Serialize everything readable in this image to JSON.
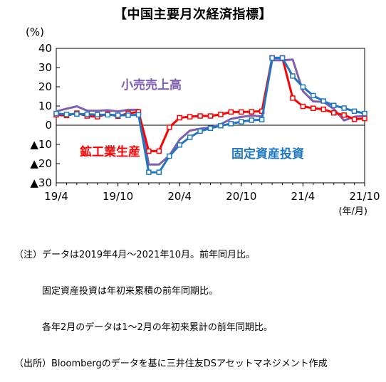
{
  "chart_data": {
    "type": "line",
    "title": "【中国主要月次経済指標】",
    "y_unit": "(%)",
    "x_unit": "(年/月)",
    "ylim": [
      -30,
      40
    ],
    "y_ticks": [
      {
        "value": 40,
        "label": "40"
      },
      {
        "value": 30,
        "label": "30"
      },
      {
        "value": 20,
        "label": "20"
      },
      {
        "value": 10,
        "label": "10"
      },
      {
        "value": 0,
        "label": "0"
      },
      {
        "value": -10,
        "label": "▲10"
      },
      {
        "value": -20,
        "label": "▲20"
      },
      {
        "value": -30,
        "label": "▲30"
      }
    ],
    "x_ticks": [
      {
        "index": 0,
        "label": "19/4"
      },
      {
        "index": 6,
        "label": "19/10"
      },
      {
        "index": 12,
        "label": "20/4"
      },
      {
        "index": 18,
        "label": "20/10"
      },
      {
        "index": 24,
        "label": "21/4"
      },
      {
        "index": 30,
        "label": "21/10"
      }
    ],
    "categories": [
      "2019/4",
      "2019/5",
      "2019/6",
      "2019/7",
      "2019/8",
      "2019/9",
      "2019/10",
      "2019/11",
      "2019/12",
      "2020/1",
      "2020/2",
      "2020/3",
      "2020/4",
      "2020/5",
      "2020/6",
      "2020/7",
      "2020/8",
      "2020/9",
      "2020/10",
      "2020/11",
      "2020/12",
      "2021/1",
      "2021/2",
      "2021/3",
      "2021/4",
      "2021/5",
      "2021/6",
      "2021/7",
      "2021/8",
      "2021/9",
      "2021/10"
    ],
    "series": [
      {
        "name": "小売売上高",
        "color": "#7f5fae",
        "marker": "none",
        "values": [
          7.2,
          8.6,
          9.8,
          7.6,
          7.5,
          7.8,
          7.2,
          8.0,
          8.0,
          -20.5,
          -20.5,
          -15.8,
          -7.5,
          -2.8,
          -1.8,
          -1.1,
          0.5,
          3.3,
          4.3,
          5.0,
          4.6,
          33.8,
          33.8,
          34.2,
          17.7,
          12.4,
          12.1,
          8.5,
          2.5,
          4.4,
          4.9
        ]
      },
      {
        "name": "鉱工業生産",
        "color": "#ff0000",
        "marker": "square",
        "values": [
          5.4,
          5.0,
          6.3,
          4.8,
          4.4,
          5.8,
          4.7,
          6.2,
          6.9,
          -13.5,
          -13.5,
          -1.1,
          3.9,
          4.4,
          4.8,
          4.8,
          5.6,
          6.9,
          6.9,
          7.0,
          7.3,
          35.1,
          35.1,
          14.1,
          9.8,
          8.8,
          8.3,
          6.4,
          5.3,
          3.1,
          3.5
        ]
      },
      {
        "name": "固定資産投資",
        "color": "#1f78c1",
        "marker": "square",
        "values": [
          6.1,
          5.6,
          5.8,
          5.7,
          5.5,
          5.4,
          5.2,
          5.2,
          5.4,
          -24.5,
          -24.5,
          -16.1,
          -10.3,
          -6.3,
          -3.1,
          -1.6,
          -0.3,
          0.8,
          1.8,
          2.6,
          2.9,
          35.0,
          35.0,
          25.6,
          19.9,
          15.4,
          12.6,
          10.3,
          8.9,
          7.3,
          6.1
        ]
      }
    ],
    "series_labels": [
      {
        "series": "小売売上高",
        "text": "小売売上高",
        "color": "#7f5fae"
      },
      {
        "series": "鉱工業生産",
        "text": "鉱工業生産",
        "color": "#ff0000"
      },
      {
        "series": "固定資産投資",
        "text": "固定資産投資",
        "color": "#1f78c1"
      }
    ],
    "grid": false
  },
  "notes": [
    "（注）データは2019年4月～2021年10月。前年同月比。",
    "　　　固定資産投資は年初来累積の前年同期比。",
    "　　　各年2月のデータは1～2月の年初来累計の前年同期比。",
    "（出所）Bloombergのデータを基に三井住友DSアセットマネジメント作成"
  ]
}
